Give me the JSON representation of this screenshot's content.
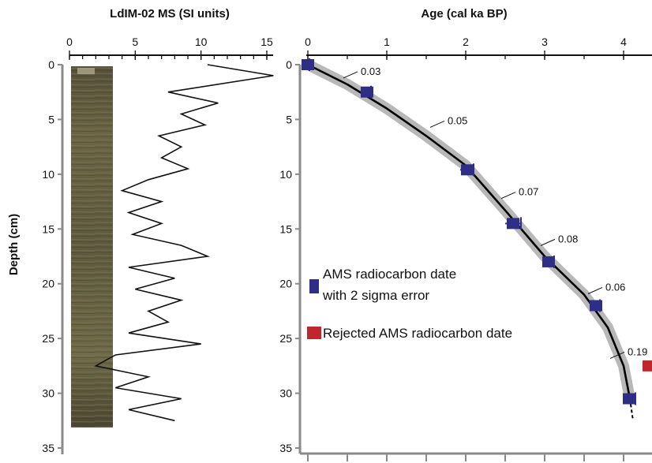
{
  "chart_data": [
    {
      "type": "line",
      "title": "LdIM-02 MS (SI units)",
      "ylabel": "Depth (cm)",
      "xlim": [
        0,
        15
      ],
      "ylim": [
        0,
        35
      ],
      "x_ticks": [
        "0",
        "5",
        "10",
        "15"
      ],
      "y_ticks": [
        "0",
        "5",
        "10",
        "15",
        "20",
        "25",
        "30",
        "35"
      ],
      "series": [
        {
          "depth": [
            0,
            1,
            2.5,
            3.5,
            4.5,
            5.5,
            6.5,
            7.5,
            8.5,
            9.5,
            10.5,
            11.5,
            12.5,
            13.5,
            14.5,
            15.5,
            16.5,
            17.5,
            18.5,
            19.5,
            20.5,
            21.5,
            22.5,
            23.5,
            24.5,
            25.5,
            26.5,
            27.5,
            28.5,
            29.5,
            30.5,
            31.5,
            32.5
          ],
          "ms": [
            10.5,
            15.5,
            7.5,
            11.3,
            8.5,
            10.3,
            6.8,
            8.5,
            7.0,
            9.0,
            6.0,
            4.0,
            7.0,
            4.5,
            7.0,
            4.8,
            8.5,
            10.5,
            4.5,
            8.0,
            5.0,
            8.5,
            6.0,
            7.5,
            4.5,
            10.0,
            3.5,
            2.0,
            6.0,
            3.5,
            8.5,
            4.5,
            8.0
          ]
        }
      ]
    },
    {
      "type": "scatter",
      "title": "Age (cal ka BP)",
      "xlim": [
        0,
        4.2
      ],
      "ylim": [
        0,
        35
      ],
      "x_ticks": [
        "0",
        "1",
        "2",
        "3",
        "4"
      ],
      "y_ticks": [
        "0",
        "5",
        "10",
        "15",
        "20",
        "25",
        "30",
        "35"
      ],
      "series": [
        {
          "name": "AMS radiocarbon date with 2 sigma error",
          "color": "#2e2e86",
          "points": [
            {
              "age": 0.0,
              "depth": 0.0,
              "age_min": -0.02,
              "age_max": 0.02
            },
            {
              "age": 0.75,
              "depth": 2.5,
              "age_min": 0.7,
              "age_max": 0.8
            },
            {
              "age": 2.02,
              "depth": 9.6,
              "age_min": 1.93,
              "age_max": 2.1
            },
            {
              "age": 2.6,
              "depth": 14.5,
              "age_min": 2.5,
              "age_max": 2.7
            },
            {
              "age": 3.05,
              "depth": 18.0,
              "age_min": 2.97,
              "age_max": 3.12
            },
            {
              "age": 3.65,
              "depth": 22.0,
              "age_min": 3.6,
              "age_max": 3.7
            },
            {
              "age": 4.07,
              "depth": 30.5,
              "age_min": 4.0,
              "age_max": 4.15
            }
          ]
        },
        {
          "name": "Rejected AMS radiocarbon date",
          "color": "#c0272d",
          "points": [
            {
              "age": 4.3,
              "depth": 27.5
            }
          ]
        }
      ],
      "age_model": {
        "age": [
          0,
          0.5,
          1.0,
          1.5,
          2.0,
          2.5,
          3.0,
          3.5,
          3.8,
          4.0,
          4.08
        ],
        "depth": [
          0,
          1.8,
          4.0,
          6.5,
          9.2,
          13.3,
          17.5,
          21.0,
          24.0,
          27.5,
          30.5
        ],
        "extension": {
          "age": [
            4.08,
            4.12
          ],
          "depth": [
            30.5,
            32.5
          ]
        }
      },
      "rate_labels": [
        {
          "text": "0.03",
          "age": 0.67,
          "depth": 0.5
        },
        {
          "text": "0.05",
          "age": 1.77,
          "depth": 5.0
        },
        {
          "text": "0.07",
          "age": 2.67,
          "depth": 11.5
        },
        {
          "text": "0.08",
          "age": 3.17,
          "depth": 15.8
        },
        {
          "text": "0.06",
          "age": 3.77,
          "depth": 20.2
        },
        {
          "text": "0.19",
          "age": 4.05,
          "depth": 26.1
        }
      ],
      "legend": [
        {
          "lines": [
            "AMS radiocarbon date",
            "with 2 sigma error"
          ],
          "color": "#2e2e86",
          "placement": "middle-left"
        },
        {
          "lines": [
            "Rejected AMS radiocarbon date"
          ],
          "color": "#c0272d",
          "placement": "middle-left"
        }
      ]
    }
  ]
}
